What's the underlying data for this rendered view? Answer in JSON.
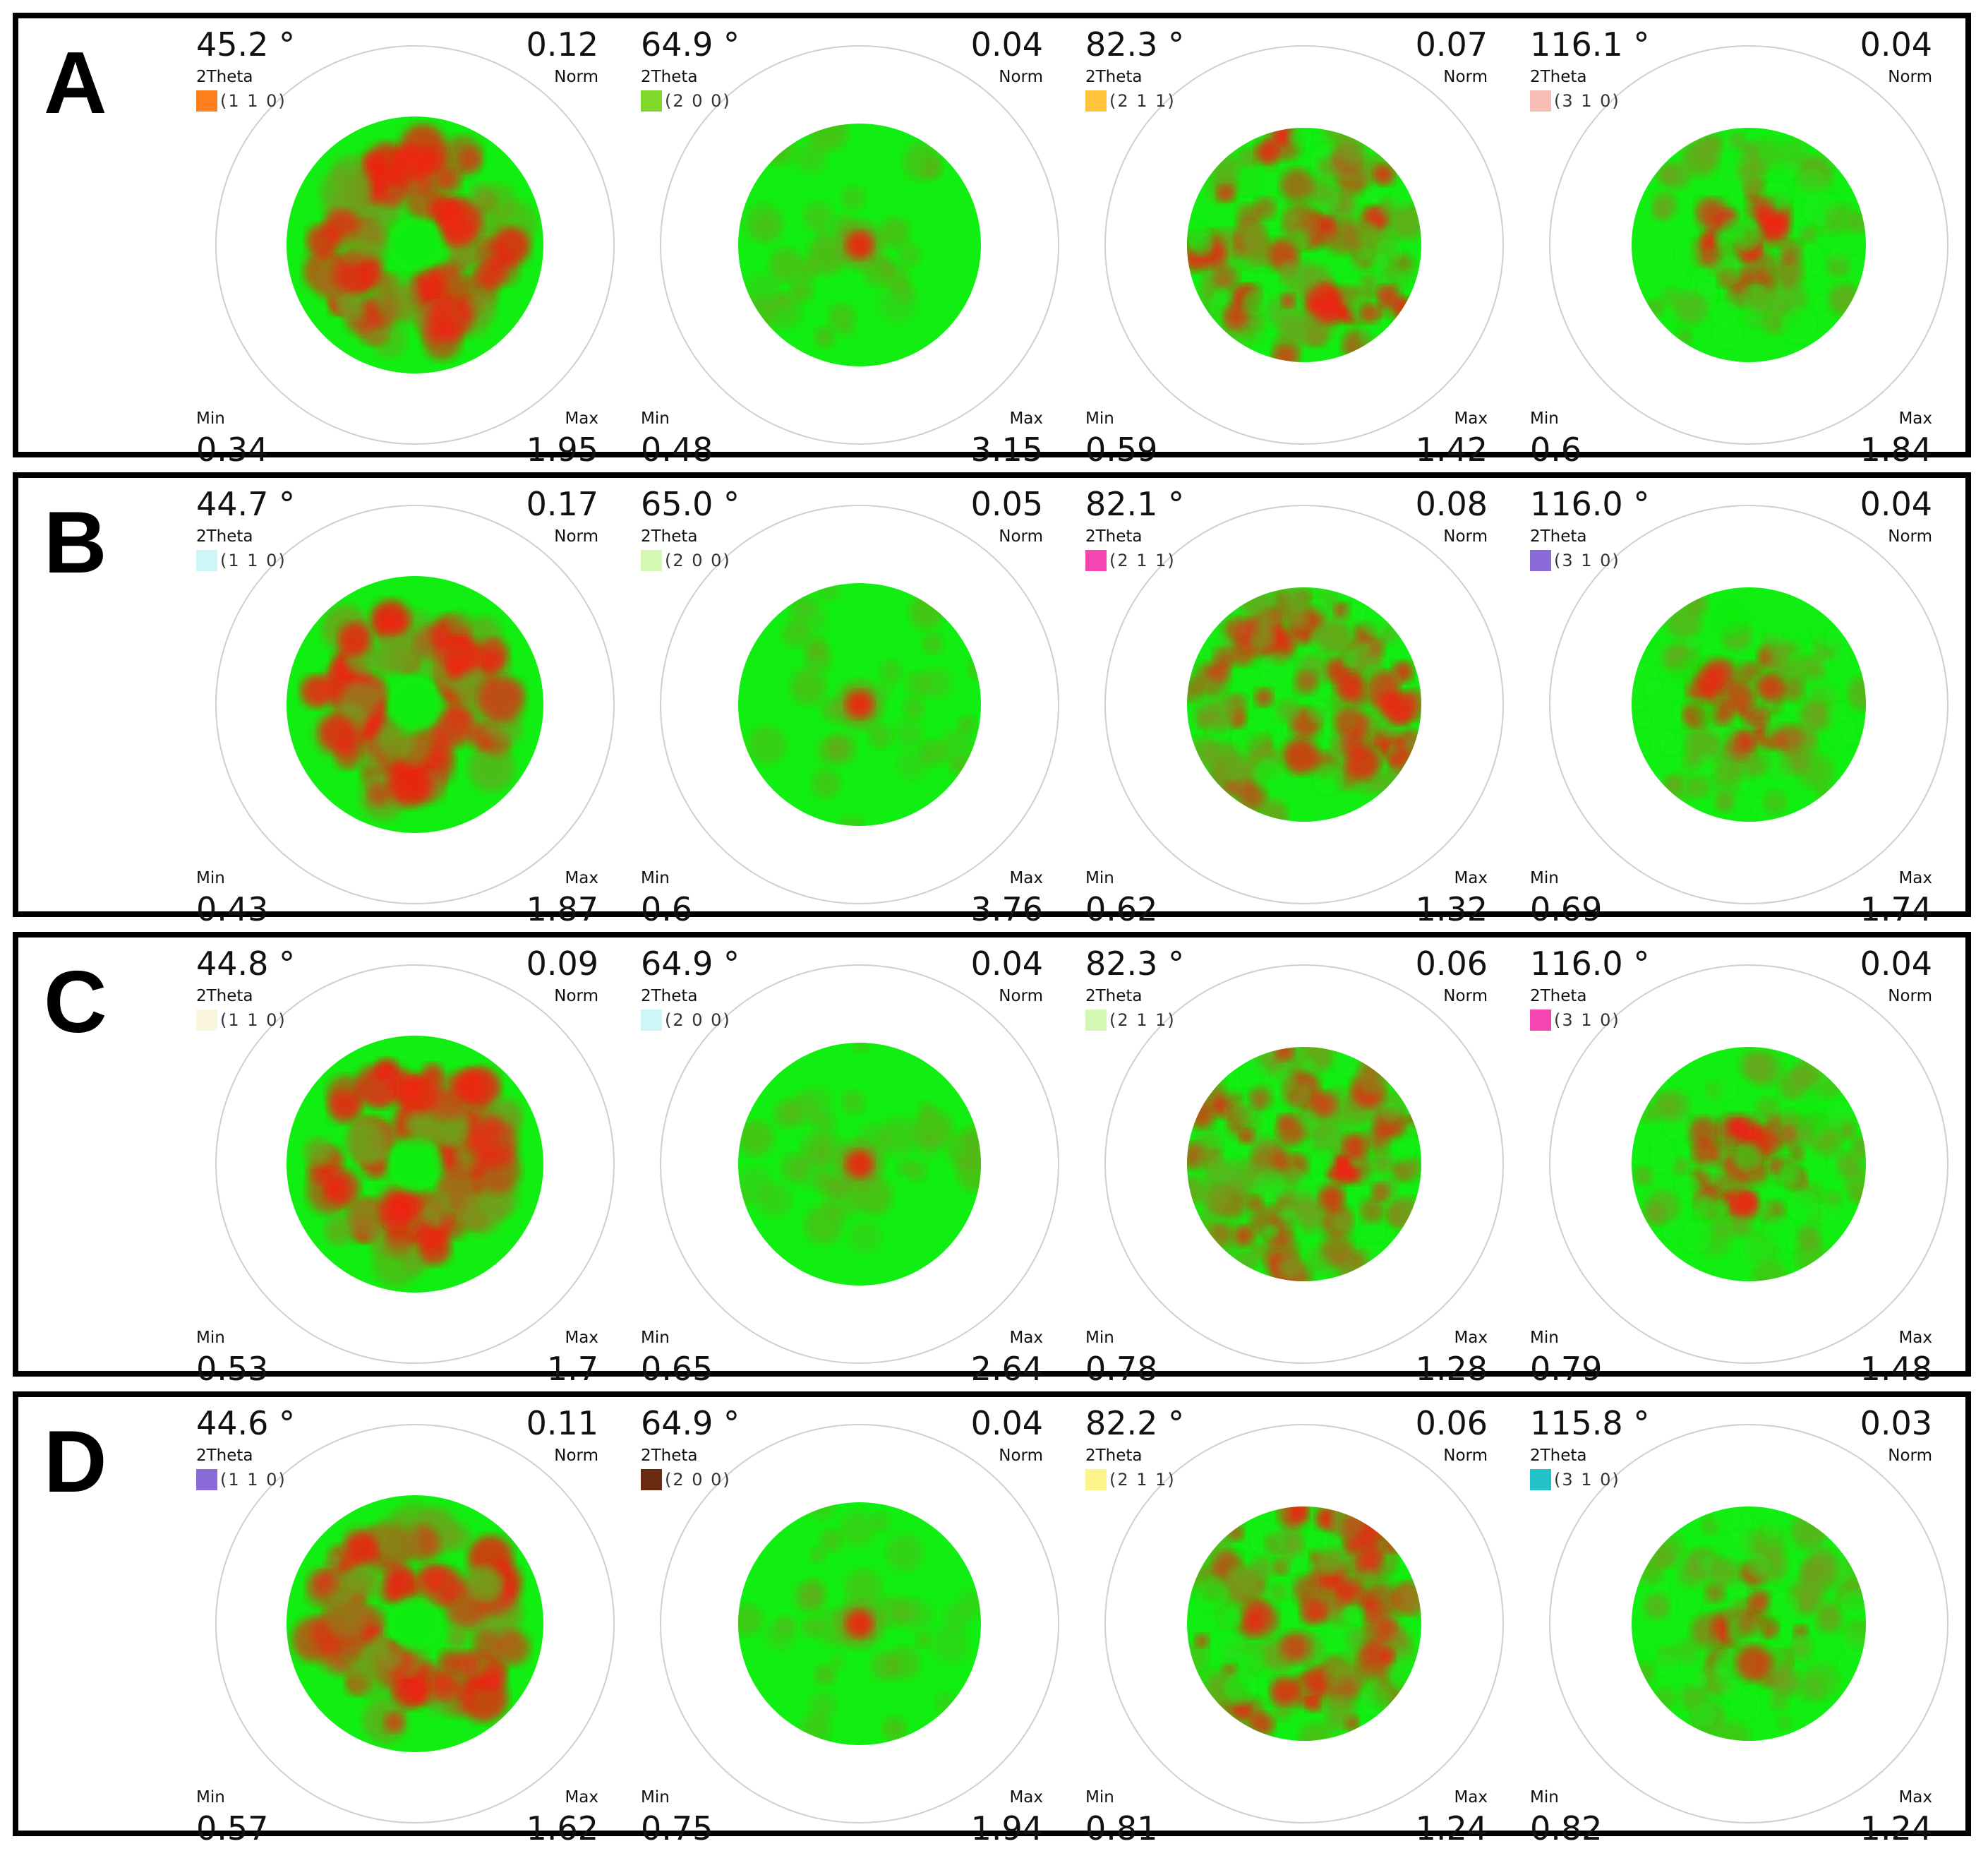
{
  "labels": {
    "two_theta": "2Theta",
    "norm": "Norm",
    "min": "Min",
    "max": "Max",
    "degree": " °"
  },
  "rows": [
    {
      "label": "A",
      "panels": [
        {
          "two_theta": "45.2",
          "norm": "0.12",
          "hkl": "(1 1 0)",
          "swatch": "#FF7F1E",
          "min": "0.34",
          "max": "1.95",
          "pattern": "ring"
        },
        {
          "two_theta": "64.9",
          "norm": "0.04",
          "hkl": "(2 0 0)",
          "swatch": "#7FD82A",
          "min": "0.48",
          "max": "3.15",
          "pattern": "center"
        },
        {
          "two_theta": "82.3",
          "norm": "0.07",
          "hkl": "(2 1 1)",
          "swatch": "#FFC43A",
          "min": "0.59",
          "max": "1.42",
          "pattern": "speckle"
        },
        {
          "two_theta": "116.1",
          "norm": "0.04",
          "hkl": "(3 1 0)",
          "swatch": "#F8BDB5",
          "min": "0.6",
          "max": "1.84",
          "pattern": "center-diffuse"
        }
      ]
    },
    {
      "label": "B",
      "panels": [
        {
          "two_theta": "44.7",
          "norm": "0.17",
          "hkl": "(1 1 0)",
          "swatch": "#CFF6F6",
          "min": "0.43",
          "max": "1.87",
          "pattern": "ring"
        },
        {
          "two_theta": "65.0",
          "norm": "0.05",
          "hkl": "(2 0 0)",
          "swatch": "#D4F7B3",
          "min": "0.6",
          "max": "3.76",
          "pattern": "center"
        },
        {
          "two_theta": "82.1",
          "norm": "0.08",
          "hkl": "(2 1 1)",
          "swatch": "#F545B0",
          "min": "0.62",
          "max": "1.32",
          "pattern": "speckle"
        },
        {
          "two_theta": "116.0",
          "norm": "0.04",
          "hkl": "(3 1 0)",
          "swatch": "#8A6BD8",
          "min": "0.69",
          "max": "1.74",
          "pattern": "center-diffuse"
        }
      ]
    },
    {
      "label": "C",
      "panels": [
        {
          "two_theta": "44.8",
          "norm": "0.09",
          "hkl": "(1 1 0)",
          "swatch": "#FBF7DF",
          "min": "0.53",
          "max": "1.7",
          "pattern": "ring"
        },
        {
          "two_theta": "64.9",
          "norm": "0.04",
          "hkl": "(2 0 0)",
          "swatch": "#CFF6F6",
          "min": "0.65",
          "max": "2.64",
          "pattern": "center"
        },
        {
          "two_theta": "82.3",
          "norm": "0.06",
          "hkl": "(2 1 1)",
          "swatch": "#D4F7B3",
          "min": "0.78",
          "max": "1.28",
          "pattern": "speckle"
        },
        {
          "two_theta": "116.0",
          "norm": "0.04",
          "hkl": "(3 1 0)",
          "swatch": "#F545B0",
          "min": "0.79",
          "max": "1.48",
          "pattern": "center-diffuse"
        }
      ]
    },
    {
      "label": "D",
      "panels": [
        {
          "two_theta": "44.6",
          "norm": "0.11",
          "hkl": "(1 1 0)",
          "swatch": "#8A6BD8",
          "min": "0.57",
          "max": "1.62",
          "pattern": "ring"
        },
        {
          "two_theta": "64.9",
          "norm": "0.04",
          "hkl": "(2 0 0)",
          "swatch": "#6B2A12",
          "min": "0.75",
          "max": "1.94",
          "pattern": "center"
        },
        {
          "two_theta": "82.2",
          "norm": "0.06",
          "hkl": "(2 1 1)",
          "swatch": "#FBF58A",
          "min": "0.81",
          "max": "1.24",
          "pattern": "speckle"
        },
        {
          "two_theta": "115.8",
          "norm": "0.03",
          "hkl": "(3 1 0)",
          "swatch": "#22C2C8",
          "min": "0.82",
          "max": "1.24",
          "pattern": "center-diffuse"
        }
      ]
    }
  ],
  "colors": {
    "low": "#11EE11",
    "high": "#EE2211",
    "ring": "#cfcfcf"
  }
}
